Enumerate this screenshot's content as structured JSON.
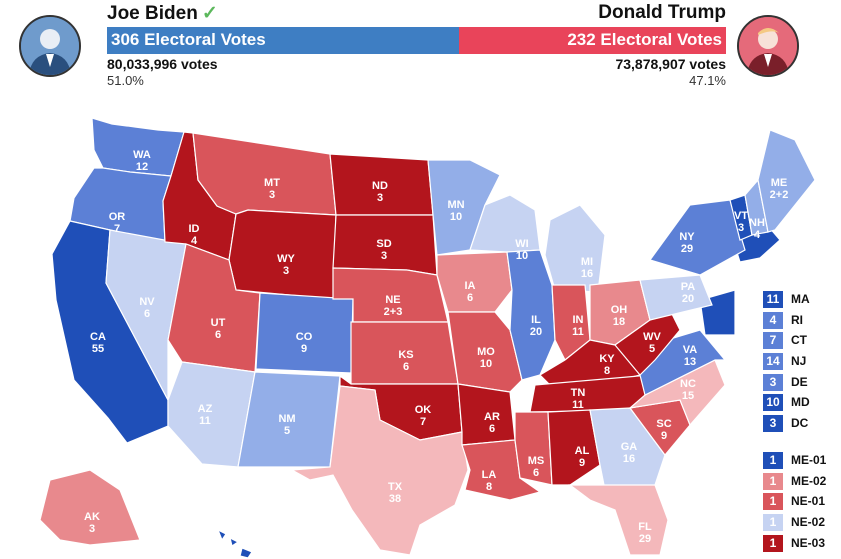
{
  "colors": {
    "dem_safe": "#1f4fb8",
    "dem_likely": "#5c80d6",
    "dem_lean": "#93aee8",
    "dem_tilt": "#c6d3f2",
    "rep_tilt": "#f4b8bb",
    "rep_lean": "#e8898d",
    "rep_likely": "#d9555b",
    "rep_safe": "#b3151d",
    "bar_dem": "#3e7ec3",
    "bar_rep": "#e9445a",
    "check": "#5cb85c"
  },
  "biden": {
    "name": "Joe Biden",
    "check_icon": "✓",
    "ev_label": "306 Electoral Votes",
    "votes": "80,033,996 votes",
    "pct": "51.0%"
  },
  "trump": {
    "name": "Donald Trump",
    "ev_label": "232 Electoral Votes",
    "votes": "73,878,907 votes",
    "pct": "47.1%"
  },
  "ev_split": {
    "dem": 306,
    "rep": 232
  },
  "states": [
    {
      "abbr": "WA",
      "ev": "12",
      "rating": "dem_likely"
    },
    {
      "abbr": "OR",
      "ev": "7",
      "rating": "dem_likely"
    },
    {
      "abbr": "CA",
      "ev": "55",
      "rating": "dem_safe"
    },
    {
      "abbr": "NV",
      "ev": "6",
      "rating": "dem_tilt"
    },
    {
      "abbr": "ID",
      "ev": "4",
      "rating": "rep_safe"
    },
    {
      "abbr": "MT",
      "ev": "3",
      "rating": "rep_likely"
    },
    {
      "abbr": "WY",
      "ev": "3",
      "rating": "rep_safe"
    },
    {
      "abbr": "UT",
      "ev": "6",
      "rating": "rep_likely"
    },
    {
      "abbr": "AZ",
      "ev": "11",
      "rating": "dem_tilt"
    },
    {
      "abbr": "CO",
      "ev": "9",
      "rating": "dem_likely"
    },
    {
      "abbr": "NM",
      "ev": "5",
      "rating": "dem_lean"
    },
    {
      "abbr": "ND",
      "ev": "3",
      "rating": "rep_safe"
    },
    {
      "abbr": "SD",
      "ev": "3",
      "rating": "rep_safe"
    },
    {
      "abbr": "NE",
      "ev": "2+3",
      "rating": "rep_likely"
    },
    {
      "abbr": "KS",
      "ev": "6",
      "rating": "rep_likely"
    },
    {
      "abbr": "OK",
      "ev": "7",
      "rating": "rep_safe"
    },
    {
      "abbr": "TX",
      "ev": "38",
      "rating": "rep_tilt"
    },
    {
      "abbr": "MN",
      "ev": "10",
      "rating": "dem_lean"
    },
    {
      "abbr": "IA",
      "ev": "6",
      "rating": "rep_lean"
    },
    {
      "abbr": "MO",
      "ev": "10",
      "rating": "rep_likely"
    },
    {
      "abbr": "AR",
      "ev": "6",
      "rating": "rep_safe"
    },
    {
      "abbr": "LA",
      "ev": "8",
      "rating": "rep_likely"
    },
    {
      "abbr": "WI",
      "ev": "10",
      "rating": "dem_tilt"
    },
    {
      "abbr": "IL",
      "ev": "20",
      "rating": "dem_likely"
    },
    {
      "abbr": "MI",
      "ev": "16",
      "rating": "dem_tilt"
    },
    {
      "abbr": "IN",
      "ev": "11",
      "rating": "rep_likely"
    },
    {
      "abbr": "OH",
      "ev": "18",
      "rating": "rep_lean"
    },
    {
      "abbr": "KY",
      "ev": "8",
      "rating": "rep_safe"
    },
    {
      "abbr": "TN",
      "ev": "11",
      "rating": "rep_safe"
    },
    {
      "abbr": "MS",
      "ev": "6",
      "rating": "rep_likely"
    },
    {
      "abbr": "AL",
      "ev": "9",
      "rating": "rep_safe"
    },
    {
      "abbr": "GA",
      "ev": "16",
      "rating": "dem_tilt"
    },
    {
      "abbr": "FL",
      "ev": "29",
      "rating": "rep_tilt"
    },
    {
      "abbr": "SC",
      "ev": "9",
      "rating": "rep_likely"
    },
    {
      "abbr": "NC",
      "ev": "15",
      "rating": "rep_tilt"
    },
    {
      "abbr": "VA",
      "ev": "13",
      "rating": "dem_likely"
    },
    {
      "abbr": "WV",
      "ev": "5",
      "rating": "rep_safe"
    },
    {
      "abbr": "PA",
      "ev": "20",
      "rating": "dem_tilt"
    },
    {
      "abbr": "NY",
      "ev": "29",
      "rating": "dem_likely"
    },
    {
      "abbr": "VT",
      "ev": "3",
      "rating": "dem_safe"
    },
    {
      "abbr": "NH",
      "ev": "4",
      "rating": "dem_lean"
    },
    {
      "abbr": "ME",
      "ev": "2+2",
      "rating": "dem_lean"
    },
    {
      "abbr": "AK",
      "ev": "3",
      "rating": "rep_lean"
    }
  ],
  "small_states": [
    {
      "ev": "11",
      "abbr": "MA",
      "rating": "dem_safe"
    },
    {
      "ev": "4",
      "abbr": "RI",
      "rating": "dem_likely"
    },
    {
      "ev": "7",
      "abbr": "CT",
      "rating": "dem_likely"
    },
    {
      "ev": "14",
      "abbr": "NJ",
      "rating": "dem_likely"
    },
    {
      "ev": "3",
      "abbr": "DE",
      "rating": "dem_likely"
    },
    {
      "ev": "10",
      "abbr": "MD",
      "rating": "dem_safe"
    },
    {
      "ev": "3",
      "abbr": "DC",
      "rating": "dem_safe"
    }
  ],
  "districts": [
    {
      "ev": "1",
      "abbr": "ME-01",
      "rating": "dem_safe"
    },
    {
      "ev": "1",
      "abbr": "ME-02",
      "rating": "rep_lean"
    },
    {
      "ev": "1",
      "abbr": "NE-01",
      "rating": "rep_likely"
    },
    {
      "ev": "1",
      "abbr": "NE-02",
      "rating": "dem_tilt"
    },
    {
      "ev": "1",
      "abbr": "NE-03",
      "rating": "rep_safe"
    }
  ]
}
